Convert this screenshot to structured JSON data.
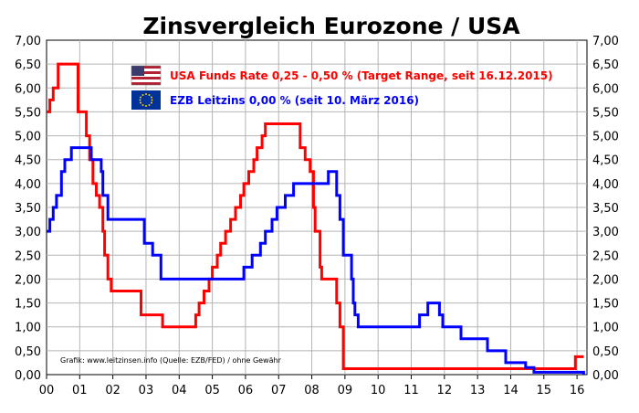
{
  "chart_data": {
    "type": "line",
    "title": "Zinsvergleich Eurozone / USA",
    "xlabel": "",
    "ylabel": "",
    "xlim": [
      2000,
      2016.3
    ],
    "ylim": [
      0,
      7
    ],
    "grid": true,
    "legend_position": "top-center",
    "x_ticks": [
      "00",
      "01",
      "02",
      "03",
      "04",
      "05",
      "06",
      "07",
      "08",
      "09",
      "10",
      "11",
      "12",
      "13",
      "14",
      "15",
      "16"
    ],
    "y_ticks": [
      "0,00",
      "0,50",
      "1,00",
      "1,50",
      "2,00",
      "2,50",
      "3,00",
      "3,50",
      "4,00",
      "4,50",
      "5,00",
      "5,50",
      "6,00",
      "6,50",
      "7,00"
    ],
    "credit": "Grafik: www.leitzinsen.info (Quelle: EZB/FED) / ohne Gewähr",
    "series": [
      {
        "name": "USA Funds Rate 0,25 - 0,50 % (Target Range, seit 16.12.2015)",
        "color": "#ff0000",
        "flag": "us-flag",
        "points": [
          [
            2000.0,
            5.5
          ],
          [
            2000.1,
            5.75
          ],
          [
            2000.2,
            6.0
          ],
          [
            2000.35,
            6.5
          ],
          [
            2000.95,
            5.5
          ],
          [
            2001.2,
            5.0
          ],
          [
            2001.3,
            4.5
          ],
          [
            2001.4,
            4.0
          ],
          [
            2001.5,
            3.75
          ],
          [
            2001.6,
            3.5
          ],
          [
            2001.7,
            3.0
          ],
          [
            2001.75,
            2.5
          ],
          [
            2001.85,
            2.0
          ],
          [
            2001.95,
            1.75
          ],
          [
            2002.85,
            1.25
          ],
          [
            2003.5,
            1.0
          ],
          [
            2004.5,
            1.25
          ],
          [
            2004.6,
            1.5
          ],
          [
            2004.75,
            1.75
          ],
          [
            2004.9,
            2.0
          ],
          [
            2005.0,
            2.25
          ],
          [
            2005.15,
            2.5
          ],
          [
            2005.25,
            2.75
          ],
          [
            2005.4,
            3.0
          ],
          [
            2005.55,
            3.25
          ],
          [
            2005.7,
            3.5
          ],
          [
            2005.85,
            3.75
          ],
          [
            2005.95,
            4.0
          ],
          [
            2006.1,
            4.25
          ],
          [
            2006.25,
            4.5
          ],
          [
            2006.35,
            4.75
          ],
          [
            2006.5,
            5.0
          ],
          [
            2006.6,
            5.25
          ],
          [
            2007.65,
            4.75
          ],
          [
            2007.8,
            4.5
          ],
          [
            2007.95,
            4.25
          ],
          [
            2008.05,
            3.5
          ],
          [
            2008.1,
            3.0
          ],
          [
            2008.25,
            2.25
          ],
          [
            2008.3,
            2.0
          ],
          [
            2008.75,
            1.5
          ],
          [
            2008.85,
            1.0
          ],
          [
            2008.95,
            0.125
          ],
          [
            2015.95,
            0.375
          ],
          [
            2016.2,
            0.375
          ]
        ]
      },
      {
        "name": "EZB Leitzins 0,00 %  (seit 10. März 2016)",
        "color": "#0000ff",
        "flag": "eu-flag",
        "points": [
          [
            2000.0,
            3.0
          ],
          [
            2000.1,
            3.25
          ],
          [
            2000.2,
            3.5
          ],
          [
            2000.3,
            3.75
          ],
          [
            2000.45,
            4.25
          ],
          [
            2000.55,
            4.5
          ],
          [
            2000.75,
            4.75
          ],
          [
            2001.35,
            4.5
          ],
          [
            2001.65,
            4.25
          ],
          [
            2001.7,
            3.75
          ],
          [
            2001.85,
            3.25
          ],
          [
            2002.95,
            2.75
          ],
          [
            2003.2,
            2.5
          ],
          [
            2003.45,
            2.0
          ],
          [
            2005.95,
            2.25
          ],
          [
            2006.2,
            2.5
          ],
          [
            2006.45,
            2.75
          ],
          [
            2006.6,
            3.0
          ],
          [
            2006.8,
            3.25
          ],
          [
            2006.95,
            3.5
          ],
          [
            2007.2,
            3.75
          ],
          [
            2007.45,
            4.0
          ],
          [
            2008.5,
            4.25
          ],
          [
            2008.75,
            3.75
          ],
          [
            2008.85,
            3.25
          ],
          [
            2008.95,
            2.5
          ],
          [
            2009.2,
            2.0
          ],
          [
            2009.25,
            1.5
          ],
          [
            2009.3,
            1.25
          ],
          [
            2009.4,
            1.0
          ],
          [
            2011.25,
            1.25
          ],
          [
            2011.5,
            1.5
          ],
          [
            2011.85,
            1.25
          ],
          [
            2011.95,
            1.0
          ],
          [
            2012.5,
            0.75
          ],
          [
            2013.3,
            0.5
          ],
          [
            2013.85,
            0.25
          ],
          [
            2014.45,
            0.15
          ],
          [
            2014.7,
            0.05
          ],
          [
            2016.2,
            0.0
          ]
        ]
      }
    ]
  }
}
